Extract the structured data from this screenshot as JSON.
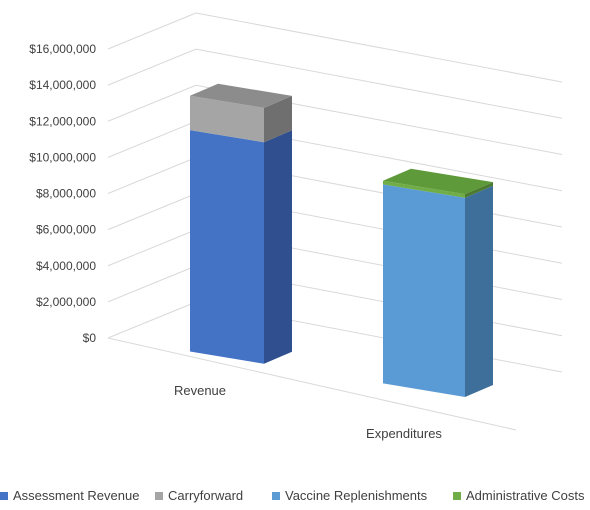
{
  "chart_data": {
    "type": "bar",
    "stacked": true,
    "three_d": true,
    "categories": [
      "Revenue",
      "Expenditures"
    ],
    "series": [
      {
        "name": "Assessment Revenue",
        "values": [
          12250000,
          0
        ],
        "color": "#4472C4"
      },
      {
        "name": "Carryforward",
        "values": [
          1900000,
          0
        ],
        "color": "#A5A5A5"
      },
      {
        "name": "Vaccine Replenishments",
        "values": [
          0,
          11000000
        ],
        "color": "#5B9BD5"
      },
      {
        "name": "Administrative Costs",
        "values": [
          0,
          200000
        ],
        "color": "#70AD47"
      }
    ],
    "ylim": [
      0,
      16000000
    ],
    "yticks": [
      "$0",
      "$2,000,000",
      "$4,000,000",
      "$6,000,000",
      "$8,000,000",
      "$10,000,000",
      "$12,000,000",
      "$14,000,000",
      "$16,000,000"
    ],
    "grid": true,
    "legend_position": "bottom"
  }
}
